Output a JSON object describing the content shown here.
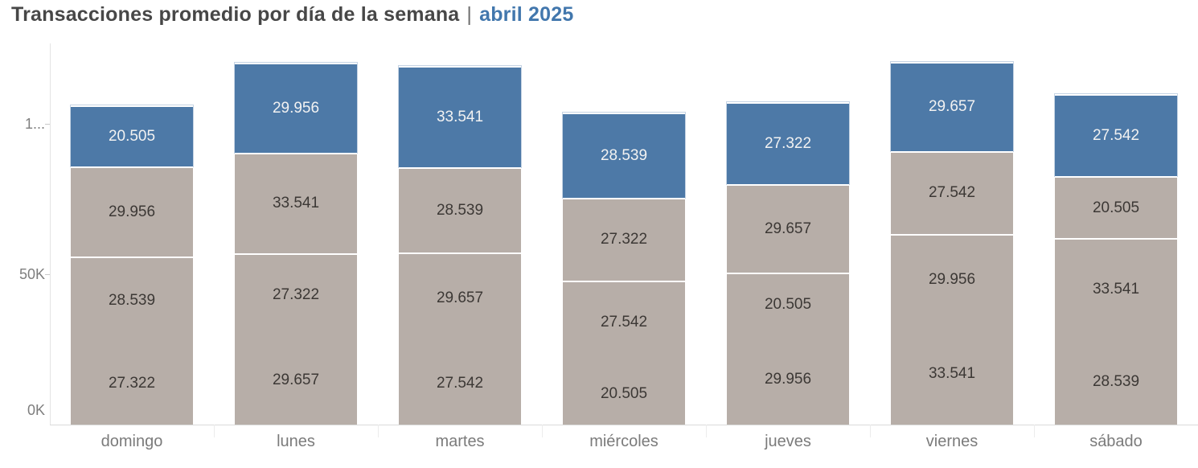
{
  "title": {
    "main": "Transacciones promedio por día de la semana",
    "separator": "|",
    "period": "abril 2025"
  },
  "colors": {
    "bar_top_blue": "#4d79a7",
    "bar_base_tan": "#b7aea8",
    "title_text": "#474747",
    "period_text": "#4277ad",
    "axis_text": "#7e7e7e",
    "label_on_blue": "#f2f2f2",
    "label_on_tan": "#3c3835"
  },
  "y_axis": {
    "ticks": [
      {
        "label": "0K",
        "value": 0
      },
      {
        "label": "50K",
        "value": 50000
      },
      {
        "label": "1...",
        "value": 100000
      }
    ]
  },
  "chart_data": {
    "type": "bar",
    "stacked": true,
    "title": "Transacciones promedio por día de la semana | abril 2025",
    "xlabel": "",
    "ylabel": "",
    "ylim": [
      0,
      126600
    ],
    "grid": false,
    "legend_position": "none",
    "categories": [
      "domingo",
      "lunes",
      "martes",
      "miércoles",
      "jueves",
      "viernes",
      "sábado"
    ],
    "segment_order": "bottom_to_top",
    "bars": [
      {
        "category": "domingo",
        "segments": [
          {
            "value": 27322,
            "label": "27.322",
            "role": "base"
          },
          {
            "value": 28539,
            "label": "28.539",
            "role": "base"
          },
          {
            "value": 29956,
            "label": "29.956",
            "role": "base"
          },
          {
            "value": 20505,
            "label": "20.505",
            "role": "top"
          }
        ],
        "total": 106322
      },
      {
        "category": "lunes",
        "segments": [
          {
            "value": 29657,
            "label": "29.657",
            "role": "base"
          },
          {
            "value": 27322,
            "label": "27.322",
            "role": "base"
          },
          {
            "value": 33541,
            "label": "33.541",
            "role": "base"
          },
          {
            "value": 29956,
            "label": "29.956",
            "role": "top"
          }
        ],
        "total": 120476
      },
      {
        "category": "martes",
        "segments": [
          {
            "value": 27542,
            "label": "27.542",
            "role": "base"
          },
          {
            "value": 29657,
            "label": "29.657",
            "role": "base"
          },
          {
            "value": 28539,
            "label": "28.539",
            "role": "base"
          },
          {
            "value": 33541,
            "label": "33.541",
            "role": "top"
          }
        ],
        "total": 119279
      },
      {
        "category": "miércoles",
        "segments": [
          {
            "value": 20505,
            "label": "20.505",
            "role": "base"
          },
          {
            "value": 27542,
            "label": "27.542",
            "role": "base"
          },
          {
            "value": 27322,
            "label": "27.322",
            "role": "base"
          },
          {
            "value": 28539,
            "label": "28.539",
            "role": "top"
          }
        ],
        "total": 103908
      },
      {
        "category": "jueves",
        "segments": [
          {
            "value": 29956,
            "label": "29.956",
            "role": "base"
          },
          {
            "value": 20505,
            "label": "20.505",
            "role": "base"
          },
          {
            "value": 29657,
            "label": "29.657",
            "role": "base"
          },
          {
            "value": 27322,
            "label": "27.322",
            "role": "top"
          }
        ],
        "total": 107440
      },
      {
        "category": "viernes",
        "segments": [
          {
            "value": 33541,
            "label": "33.541",
            "role": "base"
          },
          {
            "value": 29956,
            "label": "29.956",
            "role": "base"
          },
          {
            "value": 27542,
            "label": "27.542",
            "role": "base"
          },
          {
            "value": 29657,
            "label": "29.657",
            "role": "top"
          }
        ],
        "total": 120696
      },
      {
        "category": "sábado",
        "segments": [
          {
            "value": 28539,
            "label": "28.539",
            "role": "base"
          },
          {
            "value": 33541,
            "label": "33.541",
            "role": "base"
          },
          {
            "value": 20505,
            "label": "20.505",
            "role": "base"
          },
          {
            "value": 27542,
            "label": "27.542",
            "role": "top"
          }
        ],
        "total": 110127
      }
    ]
  }
}
